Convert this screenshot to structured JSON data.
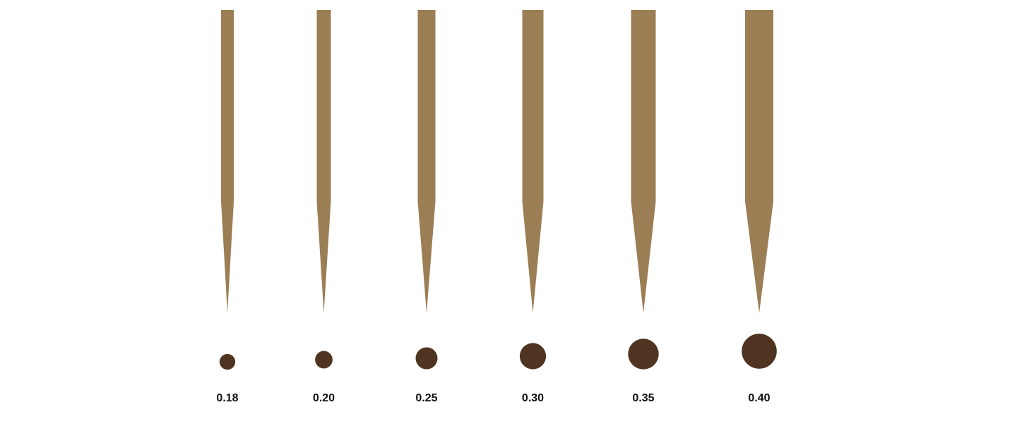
{
  "colors": {
    "needle": "#9c7e55",
    "dot": "#4f3521",
    "label": "#111111"
  },
  "sizes": [
    {
      "label": "0.18",
      "value": 0.18
    },
    {
      "label": "0.20",
      "value": 0.2
    },
    {
      "label": "0.25",
      "value": 0.25
    },
    {
      "label": "0.30",
      "value": 0.3
    },
    {
      "label": "0.35",
      "value": 0.35
    },
    {
      "label": "0.40",
      "value": 0.4
    }
  ]
}
